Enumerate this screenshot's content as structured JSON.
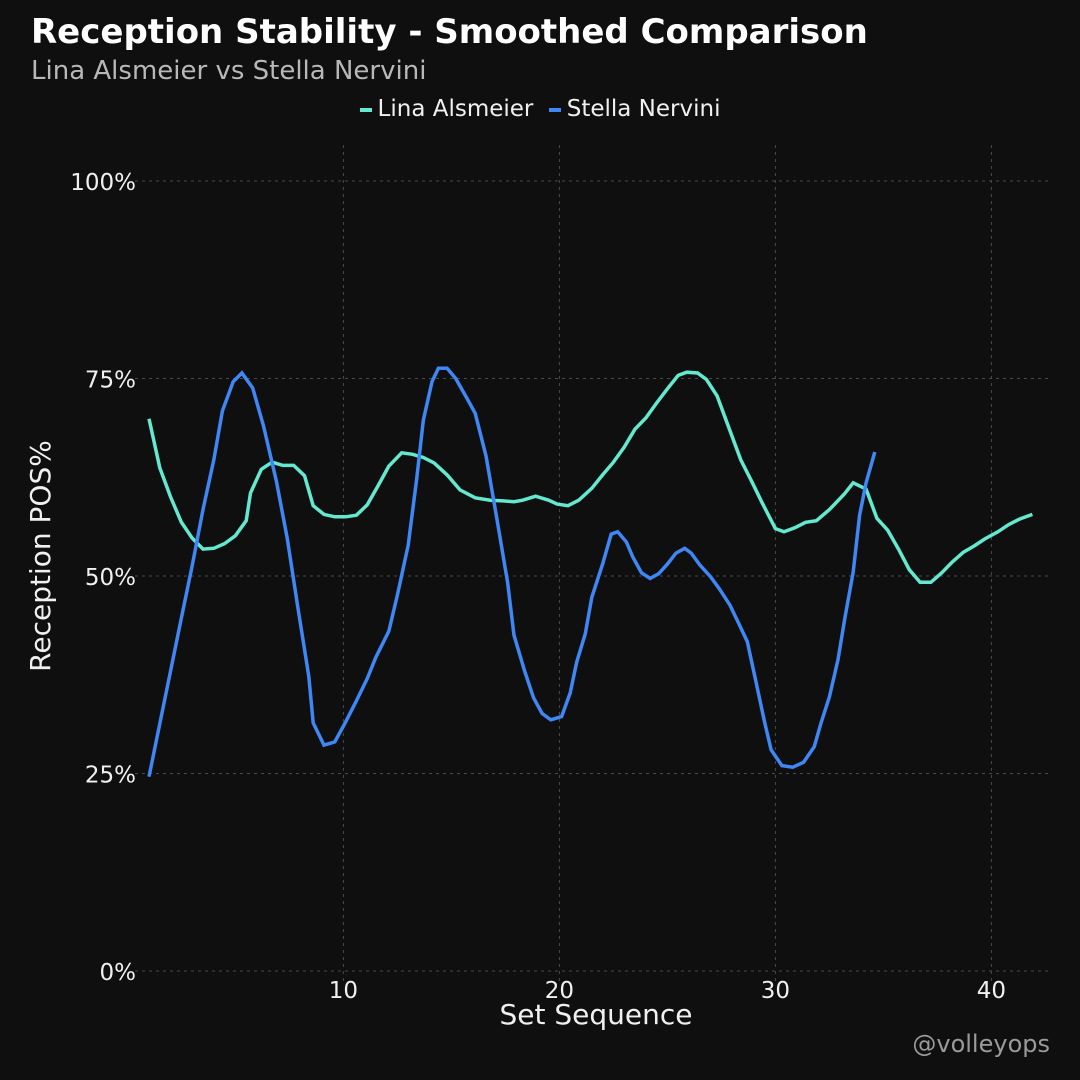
{
  "chart_data": {
    "type": "line",
    "title": "Reception Stability - Smoothed Comparison",
    "subtitle": "Lina Alsmeier vs Stella Nervini",
    "xlabel": "Set Sequence",
    "ylabel": "Reception POS%",
    "xlim": [
      1,
      42.7
    ],
    "ylim": [
      0,
      100
    ],
    "x_ticks": [
      10,
      20,
      30,
      40
    ],
    "x_tick_labels": [
      "10",
      "20",
      "30",
      "40"
    ],
    "y_ticks": [
      0,
      25,
      50,
      75,
      100
    ],
    "y_tick_labels": [
      "0%",
      "25%",
      "50%",
      "75%",
      "100%"
    ],
    "grid": true,
    "legend_position": "top-center",
    "series": [
      {
        "name": "Lina Alsmeier",
        "color": "#64e8cf",
        "x": [
          1,
          1.5,
          2,
          2.5,
          3,
          3.5,
          4,
          4.5,
          5,
          5.5,
          5.7,
          6.2,
          6.7,
          7.2,
          7.7,
          8.2,
          8.6,
          9.1,
          9.6,
          10.1,
          10.6,
          11.1,
          11.6,
          12.1,
          12.7,
          13.2,
          13.7,
          14.2,
          14.8,
          15.4,
          16.1,
          16.8,
          17.4,
          17.9,
          18.3,
          18.9,
          19.5,
          19.9,
          20.4,
          20.9,
          21.5,
          22,
          22.5,
          23,
          23.5,
          24,
          24.5,
          25,
          25.5,
          25.9,
          26.4,
          26.8,
          27.3,
          27.8,
          28.4,
          28.9,
          29.4,
          30,
          30.4,
          30.9,
          31.4,
          31.9,
          32.5,
          33.2,
          33.6,
          34.2,
          34.7,
          35.2,
          35.7,
          36.2,
          36.7,
          37.2,
          37.7,
          38.2,
          38.7,
          39.2,
          39.7,
          40.3,
          40.8,
          41.3,
          41.9
        ],
        "values": [
          69.9,
          63.7,
          60,
          56.8,
          54.8,
          53.4,
          53.5,
          54.1,
          55.1,
          57,
          60.5,
          63.5,
          64.4,
          64,
          64,
          62.7,
          58.9,
          57.8,
          57.5,
          57.5,
          57.7,
          59,
          61.4,
          63.9,
          65.6,
          65.4,
          65,
          64.3,
          62.8,
          60.9,
          59.9,
          59.6,
          59.5,
          59.4,
          59.6,
          60.1,
          59.6,
          59.1,
          58.9,
          59.6,
          61.1,
          62.8,
          64.4,
          66.3,
          68.6,
          70,
          71.9,
          73.7,
          75.4,
          75.8,
          75.7,
          74.9,
          72.8,
          69.1,
          64.7,
          62,
          59.2,
          56,
          55.6,
          56.1,
          56.8,
          57,
          58.4,
          60.4,
          61.8,
          61,
          57.3,
          55.8,
          53.4,
          50.8,
          49.2,
          49.2,
          50.4,
          51.8,
          53,
          53.8,
          54.7,
          55.6,
          56.5,
          57.2,
          57.8
        ]
      },
      {
        "name": "Stella Nervini",
        "color": "#3f87f5",
        "x": [
          1,
          1.5,
          2,
          2.5,
          3,
          3.5,
          4,
          4.4,
          4.9,
          5.3,
          5.8,
          6.3,
          6.9,
          7.4,
          7.9,
          8.4,
          8.6,
          9.1,
          9.6,
          10.1,
          10.6,
          11.1,
          11.5,
          12.1,
          12.5,
          13,
          13.4,
          13.7,
          14.1,
          14.4,
          14.8,
          15.2,
          15.7,
          16.1,
          16.6,
          17.1,
          17.6,
          17.9,
          18.4,
          18.8,
          19.2,
          19.6,
          20.1,
          20.5,
          20.8,
          21.2,
          21.5,
          22,
          22.4,
          22.7,
          23.1,
          23.4,
          23.8,
          24.2,
          24.6,
          25,
          25.4,
          25.8,
          26.1,
          26.5,
          27,
          27.4,
          27.9,
          28.3,
          28.7,
          29.1,
          29.5,
          29.8,
          30.3,
          30.8,
          31.3,
          31.8,
          32.1,
          32.5,
          32.9,
          33.2,
          33.6,
          33.9,
          34.2,
          34.6
        ],
        "values": [
          24.6,
          31.3,
          38,
          44.7,
          51.3,
          58.4,
          64.7,
          70.9,
          74.6,
          75.7,
          73.8,
          69,
          62,
          54.8,
          45.9,
          37.3,
          31.4,
          28.6,
          29,
          31.5,
          34.2,
          37,
          39.7,
          43,
          47.6,
          53.9,
          62.4,
          69.7,
          74.6,
          76.3,
          76.3,
          75,
          72.6,
          70.6,
          65.2,
          57.3,
          49.2,
          42.5,
          37.9,
          34.6,
          32.6,
          31.8,
          32.2,
          35.2,
          39.1,
          42.7,
          47.3,
          51.5,
          55.3,
          55.6,
          54.3,
          52.4,
          50.4,
          49.7,
          50.3,
          51.5,
          52.9,
          53.5,
          52.9,
          51.4,
          49.9,
          48.4,
          46.3,
          44,
          41.7,
          36.6,
          31.5,
          28,
          26,
          25.8,
          26.4,
          28.4,
          31.3,
          34.7,
          39.4,
          44.4,
          50.5,
          57.7,
          61.8,
          65.7
        ]
      }
    ]
  },
  "watermark": "@volleyops"
}
